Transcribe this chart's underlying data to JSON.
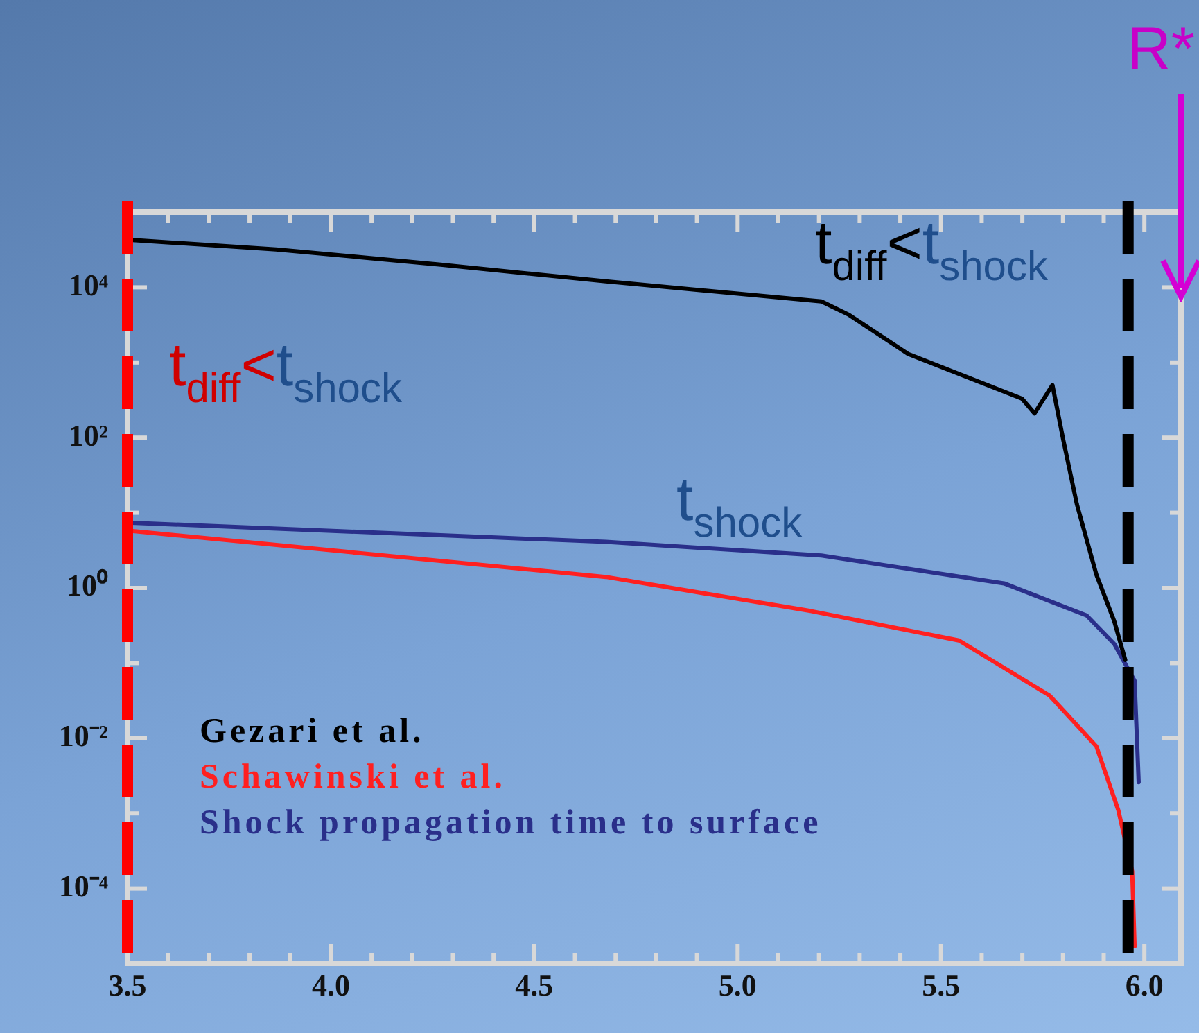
{
  "chart_data": {
    "type": "line",
    "series": [
      {
        "name": "Gezari et al.",
        "color": "#000000",
        "x": [
          3.5,
          3.865,
          4.27,
          4.676,
          5.206,
          5.274,
          5.419,
          5.699,
          5.73,
          5.774,
          5.801,
          5.834,
          5.882,
          5.926,
          5.953
        ],
        "values": [
          43000,
          32000,
          20000,
          12000,
          6500,
          4300,
          1300,
          330,
          210,
          500,
          91,
          13,
          1.5,
          0.36,
          0.11
        ]
      },
      {
        "name": "Schawinski et al.",
        "color": "#ff2020",
        "x": [
          3.5,
          4.676,
          5.182,
          5.544,
          5.767,
          5.882,
          5.936,
          5.97,
          5.976
        ],
        "values": [
          5.8,
          1.4,
          0.49,
          0.2,
          0.037,
          0.0078,
          0.0011,
          0.00017,
          1.7e-05
        ]
      },
      {
        "name": "Shock propagation time to surface",
        "color": "#2a2f8a",
        "x": [
          3.5,
          4.676,
          5.206,
          5.655,
          5.858,
          5.926,
          5.976,
          5.986
        ],
        "values": [
          7.4,
          4.1,
          2.7,
          1.15,
          0.43,
          0.18,
          0.058,
          0.0026
        ]
      }
    ],
    "xlim": [
      3.5,
      6.09
    ],
    "xticks": [
      3.5,
      {
        "value": 3.6,
        "label": null
      },
      {
        "value": 3.7,
        "label": null
      },
      {
        "value": 3.8,
        "label": null
      },
      {
        "value": 3.9,
        "label": null
      },
      {
        "value": 4,
        "label": "4.0"
      },
      {
        "value": 4.1,
        "label": null
      },
      {
        "value": 4.2,
        "label": null
      },
      {
        "value": 4.3,
        "label": null
      },
      {
        "value": 4.4,
        "label": null
      },
      4.5,
      {
        "value": 4.6,
        "label": null
      },
      {
        "value": 4.7,
        "label": null
      },
      {
        "value": 4.8,
        "label": null
      },
      {
        "value": 4.9,
        "label": null
      },
      {
        "value": 5,
        "label": "5.0"
      },
      {
        "value": 5.1,
        "label": null
      },
      {
        "value": 5.2,
        "label": null
      },
      {
        "value": 5.3,
        "label": null
      },
      {
        "value": 5.4,
        "label": null
      },
      5.5,
      {
        "value": 5.6,
        "label": null
      },
      {
        "value": 5.7,
        "label": null
      },
      {
        "value": 5.8,
        "label": null
      },
      {
        "value": 5.9,
        "label": null
      },
      {
        "value": 6,
        "label": "6.0"
      }
    ],
    "ylim": [
      1e-05,
      100000
    ],
    "yticks": [
      {
        "value": 0.0001,
        "label": "10⁻⁴"
      },
      {
        "value": 0.001,
        "label": null
      },
      {
        "value": 0.01,
        "label": "10⁻²"
      },
      {
        "value": 0.1,
        "label": null
      },
      {
        "value": 1,
        "label": "10⁰"
      },
      {
        "value": 10,
        "label": null
      },
      {
        "value": 100,
        "label": "10²"
      },
      {
        "value": 1000,
        "label": null
      },
      {
        "value": 10000,
        "label": "10⁴"
      }
    ],
    "log": "y",
    "grid": false,
    "legend": "bottom left",
    "marker": "none",
    "line_style": "solid",
    "ref_lines": [
      {
        "axis": "x",
        "value": 3.5,
        "color": "#ff0000",
        "line_style": "dashed"
      },
      {
        "axis": "x",
        "value": 5.96,
        "color": "#000000",
        "line_style": "dashed"
      }
    ],
    "annotations": [
      "t$_{diff}$<t$_{shock}$",
      "t$_{diff}$<t$_{shock}$",
      "t$_{shock}$",
      "R*"
    ]
  }
}
